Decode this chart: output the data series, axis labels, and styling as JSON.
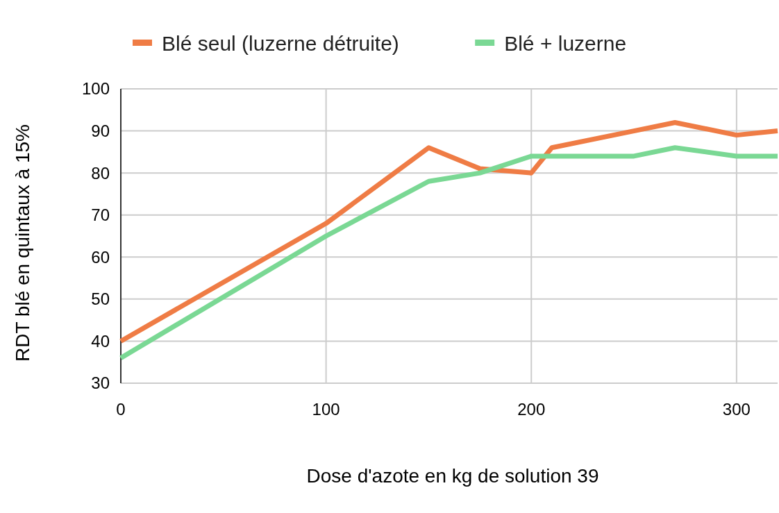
{
  "chart_data": {
    "type": "line",
    "xlabel": "Dose d'azote en kg de solution 39",
    "ylabel": "RDT blé en quintaux à 15%",
    "xlim": [
      0,
      320
    ],
    "xticks": [
      0,
      100,
      200,
      300
    ],
    "ylim": [
      30,
      100
    ],
    "yticks": [
      30,
      40,
      50,
      60,
      70,
      80,
      90,
      100
    ],
    "grid": true,
    "legend": "top",
    "line_style": "solid",
    "marker": "none",
    "series": [
      {
        "name": "Blé seul (luzerne détruite)",
        "color": "#ef7c45",
        "x": [
          0,
          100,
          150,
          175,
          200,
          210,
          250,
          270,
          300,
          320
        ],
        "values": [
          40,
          68,
          86,
          81,
          80,
          86,
          90,
          92,
          89,
          90
        ]
      },
      {
        "name": "Blé + luzerne",
        "color": "#7ad894",
        "x": [
          0,
          100,
          150,
          175,
          200,
          210,
          250,
          270,
          300,
          320
        ],
        "values": [
          36,
          65,
          78,
          80,
          84,
          84,
          84,
          86,
          84,
          84
        ]
      }
    ]
  }
}
